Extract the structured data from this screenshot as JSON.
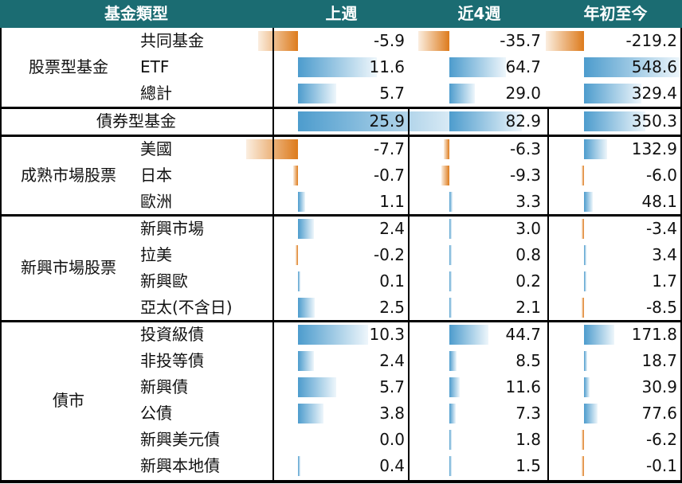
{
  "chart_data": {
    "type": "table",
    "columns": [
      "基金類型",
      "上週",
      "近4週",
      "年初至今"
    ],
    "groups": [
      {
        "name": "股票型基金",
        "rows": [
          {
            "label": "共同基金",
            "values": [
              "-5.9",
              "-35.7",
              "-219.2"
            ]
          },
          {
            "label": "ETF",
            "values": [
              "11.6",
              "64.7",
              "548.6"
            ]
          },
          {
            "label": "總計",
            "values": [
              "5.7",
              "29.0",
              "329.4"
            ]
          }
        ]
      },
      {
        "name": "債券型基金",
        "rows": [
          {
            "label": "",
            "values": [
              "25.9",
              "82.9",
              "350.3"
            ]
          }
        ]
      },
      {
        "name": "成熟市場股票",
        "rows": [
          {
            "label": "美國",
            "values": [
              "-7.7",
              "-6.3",
              "132.9"
            ]
          },
          {
            "label": "日本",
            "values": [
              "-0.7",
              "-9.3",
              "-6.0"
            ]
          },
          {
            "label": "歐洲",
            "values": [
              "1.1",
              "3.3",
              "48.1"
            ]
          }
        ]
      },
      {
        "name": "新興市場股票",
        "rows": [
          {
            "label": "新興市場",
            "values": [
              "2.4",
              "3.0",
              "-3.4"
            ]
          },
          {
            "label": "拉美",
            "values": [
              "-0.2",
              "0.8",
              "3.4"
            ]
          },
          {
            "label": "新興歐",
            "values": [
              "0.1",
              "0.2",
              "1.7"
            ]
          },
          {
            "label": "亞太(不含日)",
            "values": [
              "2.5",
              "2.1",
              "-8.5"
            ]
          }
        ]
      },
      {
        "name": "債市",
        "rows": [
          {
            "label": "投資級債",
            "values": [
              "10.3",
              "44.7",
              "171.8"
            ]
          },
          {
            "label": "非投等債",
            "values": [
              "2.4",
              "8.5",
              "18.7"
            ]
          },
          {
            "label": "新興債",
            "values": [
              "5.7",
              "11.6",
              "30.9"
            ]
          },
          {
            "label": "公債",
            "values": [
              "3.8",
              "7.3",
              "77.6"
            ]
          },
          {
            "label": "新興美元債",
            "values": [
              "0.0",
              "1.8",
              "-6.2"
            ]
          },
          {
            "label": "新興本地債",
            "values": [
              "0.4",
              "1.5",
              "-0.1"
            ]
          }
        ]
      }
    ]
  },
  "colors": {
    "header": "#1b6c72",
    "positive": "#4d9ccd",
    "negative": "#dd7b1c"
  }
}
